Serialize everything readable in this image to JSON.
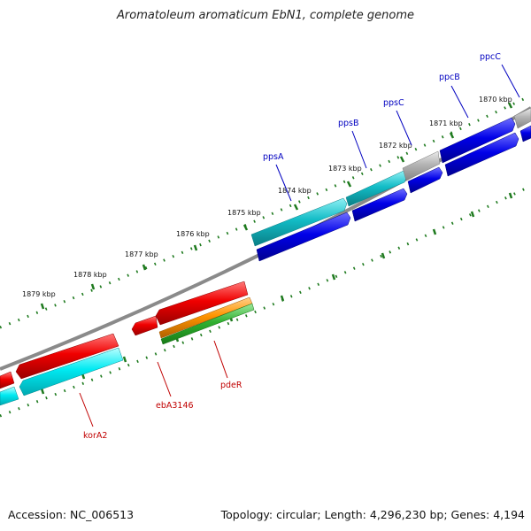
{
  "title": "Aromatoleum aromaticum EbN1, complete genome",
  "footer": {
    "accession": "Accession: NC_006513",
    "summary": "Topology: circular; Length: 4,296,230 bp; Genes: 4,194"
  },
  "colors": {
    "backbone": "#8a8a8a",
    "tick": "#1e7a1e",
    "gene_blue": "#0000e0",
    "gene_cyan": "#10bfc8",
    "gene_gray": "#b0b0b0",
    "gene_red": "#e00000",
    "gene_lightcyan": "#00e8f0",
    "gene_orange": "#ff9000",
    "gene_green": "#30b030",
    "label_blue": "#0000c0",
    "label_red": "#c00000"
  },
  "kbp_labels": [
    {
      "text": "1870 kbp"
    },
    {
      "text": "1871 kbp"
    },
    {
      "text": "1872 kbp"
    },
    {
      "text": "1873 kbp"
    },
    {
      "text": "1874 kbp"
    },
    {
      "text": "1875 kbp"
    },
    {
      "text": "1876 kbp"
    },
    {
      "text": "1877 kbp"
    },
    {
      "text": "1878 kbp"
    },
    {
      "text": "1879 kbp"
    }
  ],
  "gene_labels": [
    {
      "name": "ppcC",
      "color": "label_blue"
    },
    {
      "name": "ppcB",
      "color": "label_blue"
    },
    {
      "name": "ppsC",
      "color": "label_blue"
    },
    {
      "name": "ppsB",
      "color": "label_blue"
    },
    {
      "name": "ppsA",
      "color": "label_blue"
    },
    {
      "name": "pdeR",
      "color": "label_red"
    },
    {
      "name": "ebA3146",
      "color": "label_red"
    },
    {
      "name": "korA2",
      "color": "label_red"
    }
  ]
}
